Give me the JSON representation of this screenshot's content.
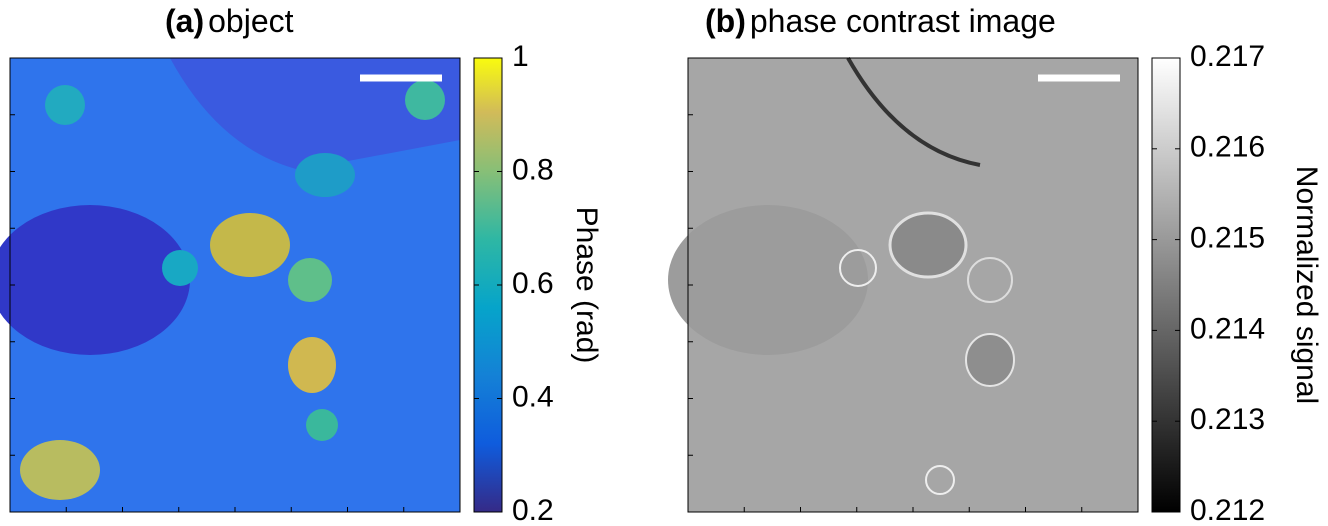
{
  "chart_data": [
    {
      "type": "image",
      "label": "(a)",
      "title": "object",
      "colorbar_label": "Phase (rad)",
      "colormap": "parula",
      "clim": [
        0.2,
        1
      ],
      "cticks": [
        0.2,
        0.4,
        0.6,
        0.8,
        1
      ]
    },
    {
      "type": "image",
      "label": "(b)",
      "title": "phase contrast image",
      "colorbar_label": "Normalized signal",
      "colormap": "gray",
      "clim": [
        0.212,
        0.217
      ],
      "cticks": [
        0.212,
        0.213,
        0.214,
        0.215,
        0.216,
        0.217
      ]
    }
  ]
}
